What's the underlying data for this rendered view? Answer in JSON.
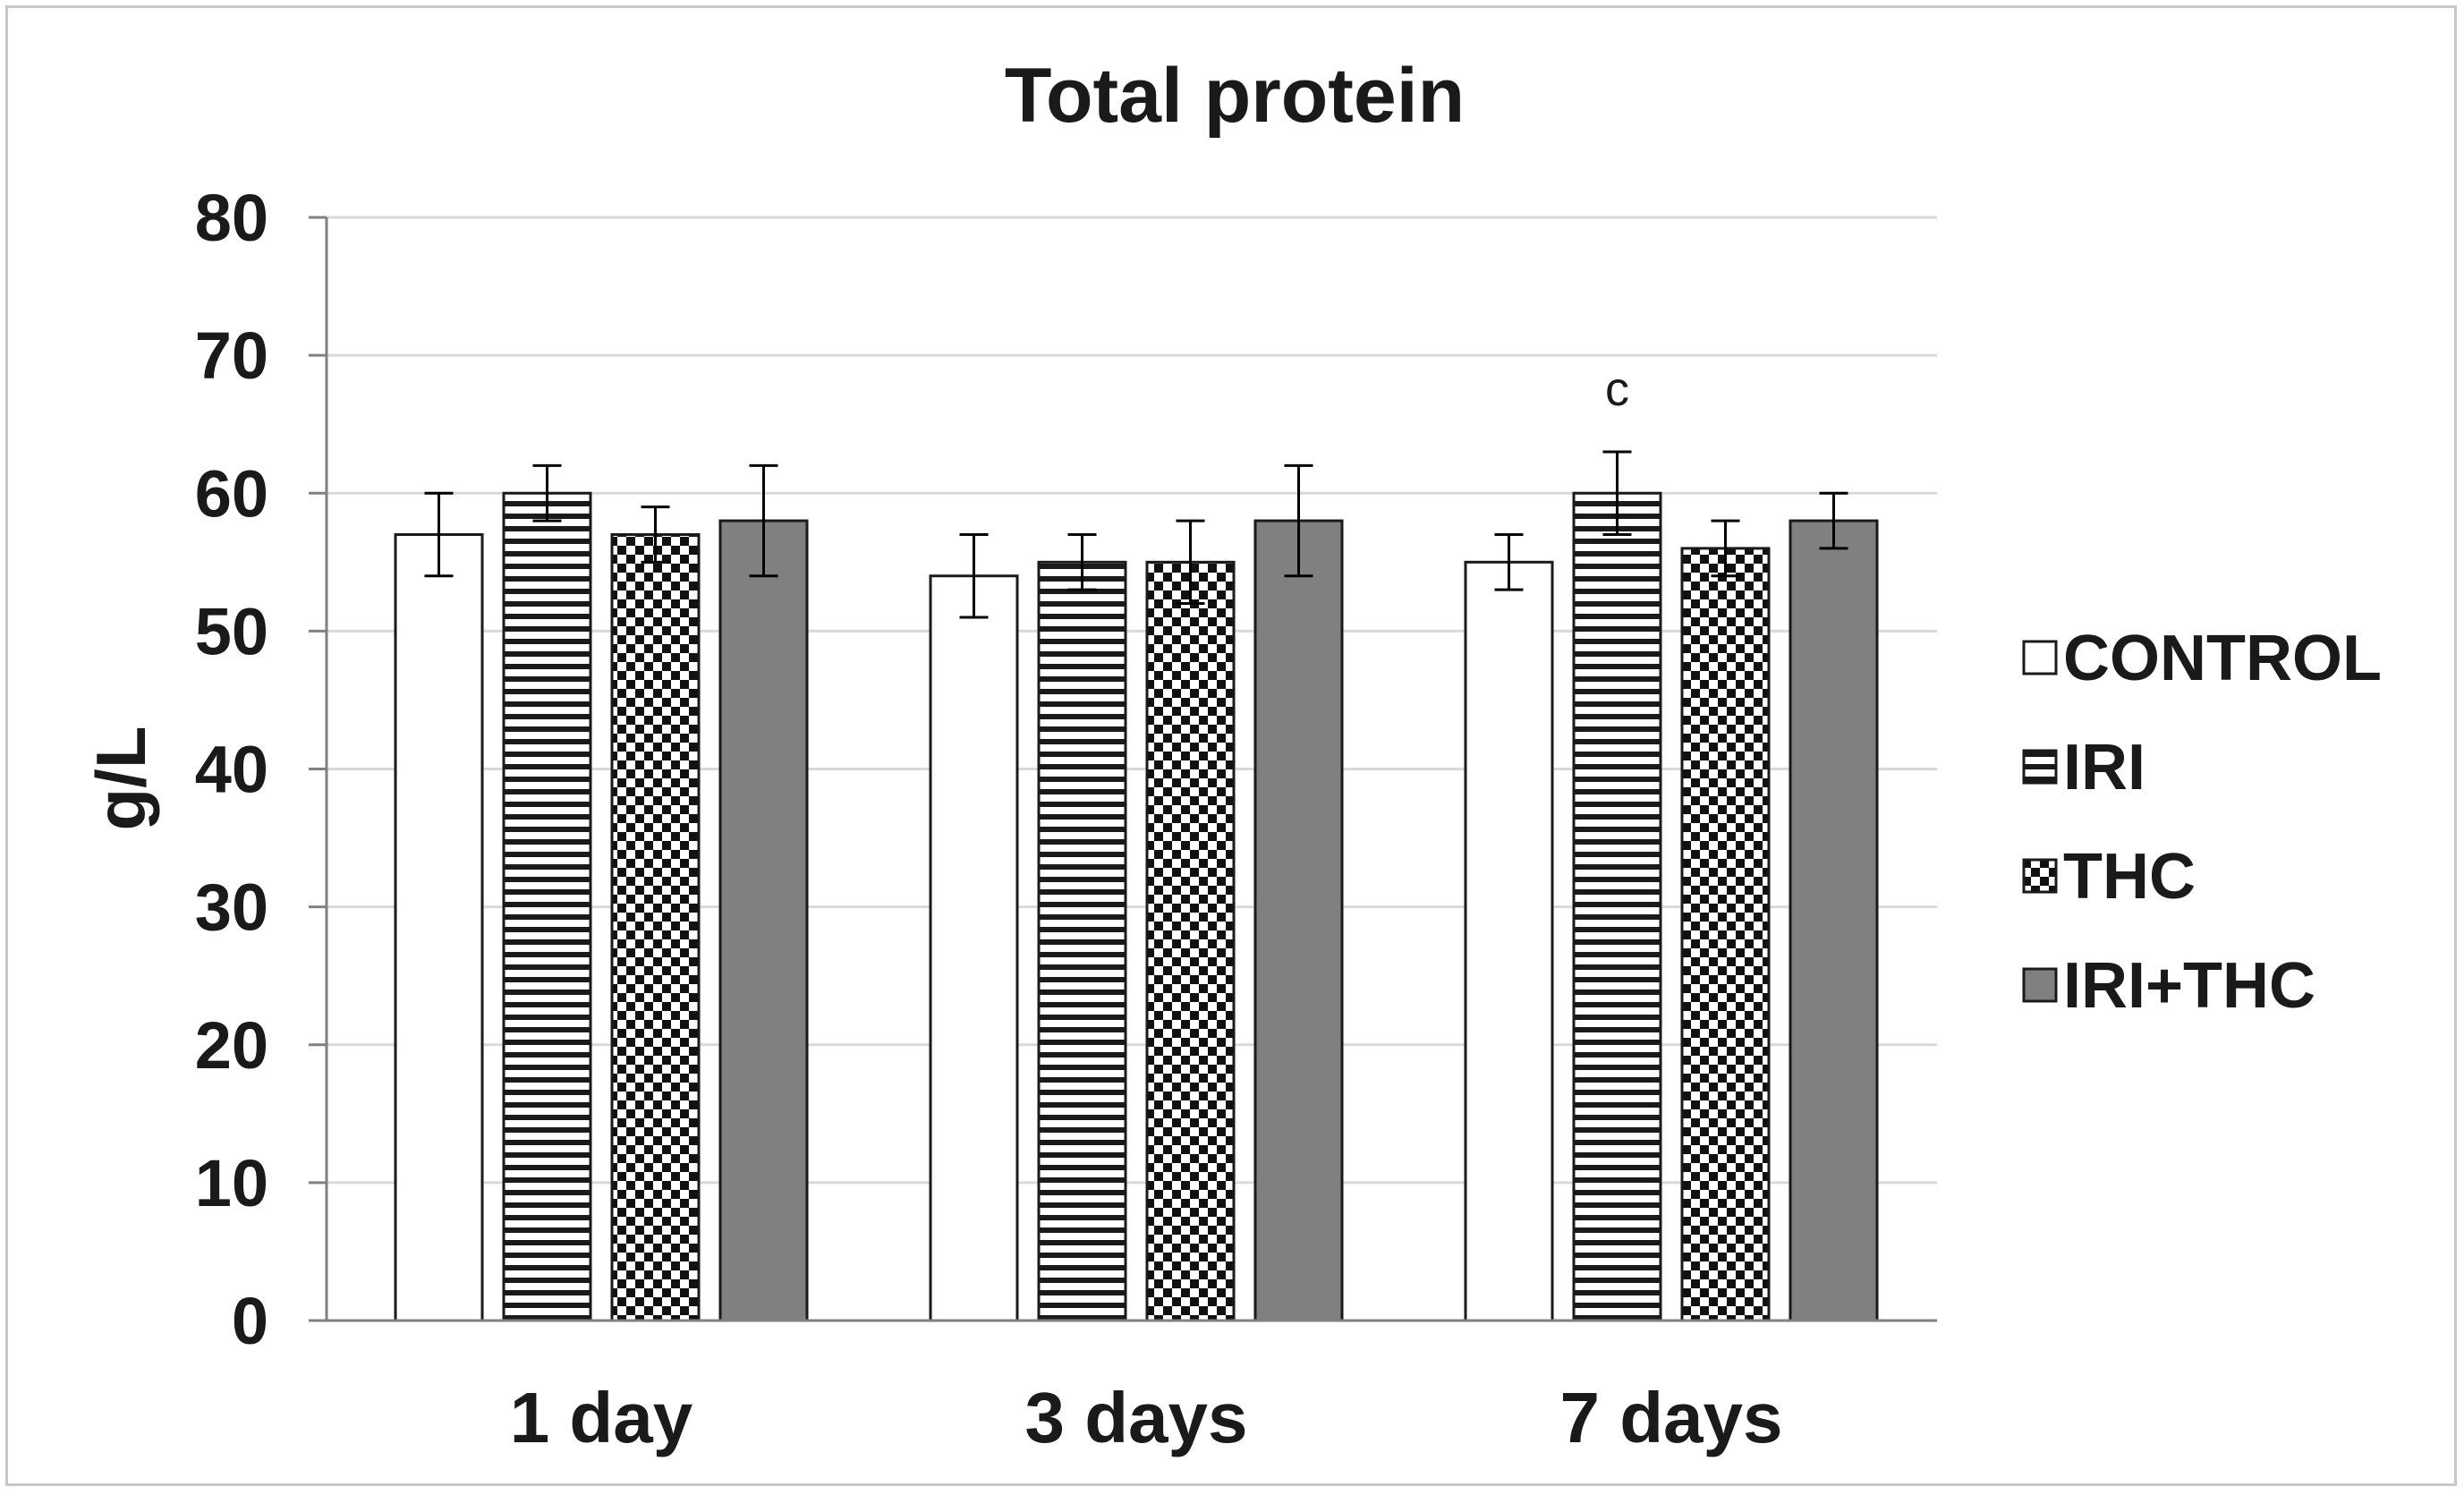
{
  "chart_data": {
    "type": "bar",
    "title": "Total protein",
    "xlabel": "",
    "ylabel": "g/L",
    "ylim": [
      0,
      80
    ],
    "yticks": [
      0,
      10,
      20,
      30,
      40,
      50,
      60,
      70,
      80
    ],
    "categories": [
      "1 day",
      "3 days",
      "7 days"
    ],
    "grid": true,
    "legend_position": "right",
    "series": [
      {
        "name": "CONTROL",
        "pattern": "white",
        "values": [
          57,
          54,
          55
        ],
        "errors": [
          3,
          3,
          2
        ]
      },
      {
        "name": "IRI",
        "pattern": "horizontal-stripes",
        "values": [
          60,
          55,
          60
        ],
        "errors": [
          2,
          2,
          3
        ]
      },
      {
        "name": "THC",
        "pattern": "checker",
        "values": [
          57,
          55,
          56
        ],
        "errors": [
          2,
          3,
          2
        ]
      },
      {
        "name": "IRI+THC",
        "pattern": "solid-gray",
        "values": [
          58,
          58,
          58
        ],
        "errors": [
          4,
          4,
          2
        ]
      }
    ],
    "annotations": [
      {
        "text": "c",
        "category": "7 days",
        "series": "IRI"
      }
    ]
  },
  "colors": {
    "gray_fill": "#808080",
    "bar_edge": "#1a1a1a",
    "gridline": "#d9d9d9",
    "axis": "#808080",
    "frame": "#c8c8c8"
  }
}
